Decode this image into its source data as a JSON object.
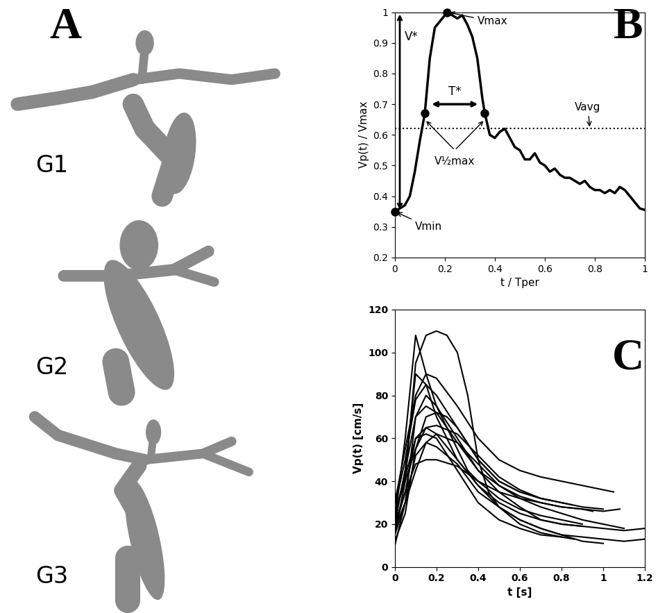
{
  "panel_labels": [
    "A",
    "B",
    "C"
  ],
  "geometry_labels": [
    "G1",
    "G2",
    "G3"
  ],
  "chart_data": [
    {
      "type": "line",
      "xlabel": "t / Tper",
      "ylabel": "Vp(t) / Vmax",
      "color": "#000000",
      "x": [
        0,
        0.04,
        0.06,
        0.08,
        0.1,
        0.12,
        0.14,
        0.16,
        0.18,
        0.21,
        0.23,
        0.25,
        0.27,
        0.29,
        0.31,
        0.33,
        0.35,
        0.36,
        0.38,
        0.4,
        0.42,
        0.44,
        0.46,
        0.48,
        0.5,
        0.52,
        0.54,
        0.56,
        0.58,
        0.6,
        0.62,
        0.64,
        0.66,
        0.68,
        0.7,
        0.72,
        0.74,
        0.76,
        0.78,
        0.8,
        0.82,
        0.84,
        0.86,
        0.88,
        0.9,
        0.92,
        0.94,
        0.96,
        0.98,
        1.0
      ],
      "values": [
        0.35,
        0.37,
        0.4,
        0.48,
        0.58,
        0.67,
        0.85,
        0.95,
        0.97,
        1.0,
        0.99,
        0.98,
        0.99,
        0.96,
        0.92,
        0.85,
        0.72,
        0.67,
        0.6,
        0.59,
        0.61,
        0.62,
        0.59,
        0.56,
        0.55,
        0.52,
        0.52,
        0.54,
        0.51,
        0.5,
        0.48,
        0.49,
        0.47,
        0.46,
        0.46,
        0.45,
        0.44,
        0.45,
        0.43,
        0.42,
        0.42,
        0.41,
        0.42,
        0.41,
        0.43,
        0.42,
        0.4,
        0.38,
        0.36,
        0.355
      ],
      "xlim": [
        0,
        1
      ],
      "xticks": [
        0,
        0.2,
        0.4,
        0.6,
        0.8,
        1
      ],
      "ylim": [
        0.2,
        1
      ],
      "yticks": [
        0.2,
        0.3,
        0.4,
        0.5,
        0.6,
        0.7,
        0.8,
        0.9,
        1
      ],
      "marked_points": [
        {
          "label": "Vmax",
          "x": 0.21,
          "y": 1.0
        },
        {
          "label": "Vmin",
          "x": 0,
          "y": 0.35
        }
      ],
      "half_max_points": {
        "label": "V½max",
        "x": [
          0.12,
          0.36
        ],
        "y": [
          0.67,
          0.67
        ]
      },
      "avg_line": {
        "label": "Vavg",
        "value": 0.62
      },
      "range_arrows": [
        "V*",
        "T*"
      ]
    },
    {
      "type": "line",
      "xlabel": "t [s]",
      "ylabel": "Vp(t) [cm/s]",
      "color": "#000000",
      "xlim": [
        0,
        1.2
      ],
      "xticks": [
        0,
        0.2,
        0.4,
        0.6,
        0.8,
        1,
        1.2
      ],
      "ylim": [
        0,
        120
      ],
      "yticks": [
        0,
        20,
        40,
        60,
        80,
        100,
        120
      ],
      "series": [
        {
          "x": [
            0,
            0.05,
            0.1,
            0.15,
            0.2,
            0.25,
            0.3,
            0.35,
            0.4,
            0.5,
            0.6,
            0.7,
            0.8,
            0.9,
            1.0,
            1.08
          ],
          "values": [
            22,
            60,
            108,
            90,
            75,
            65,
            55,
            45,
            40,
            35,
            32,
            30,
            28,
            27,
            26,
            27
          ]
        },
        {
          "x": [
            0,
            0.05,
            0.1,
            0.15,
            0.2,
            0.25,
            0.3,
            0.35,
            0.4,
            0.45,
            0.5,
            0.6,
            0.7,
            0.8,
            0.86
          ],
          "values": [
            15,
            40,
            95,
            108,
            110,
            108,
            100,
            80,
            50,
            35,
            28,
            20,
            16,
            14,
            13
          ]
        },
        {
          "x": [
            0,
            0.05,
            0.1,
            0.15,
            0.2,
            0.3,
            0.4,
            0.5,
            0.6,
            0.7,
            0.8,
            0.9,
            1.0,
            1.1,
            1.2
          ],
          "values": [
            10,
            30,
            70,
            80,
            75,
            60,
            45,
            35,
            28,
            22,
            20,
            19,
            18,
            17,
            18
          ]
        },
        {
          "x": [
            0,
            0.05,
            0.1,
            0.15,
            0.2,
            0.3,
            0.4,
            0.5,
            0.6,
            0.7,
            0.8,
            0.9,
            1.0,
            1.1,
            1.2
          ],
          "values": [
            12,
            25,
            55,
            65,
            62,
            50,
            38,
            28,
            22,
            18,
            15,
            14,
            13,
            12,
            13
          ]
        },
        {
          "x": [
            0,
            0.05,
            0.1,
            0.15,
            0.2,
            0.3,
            0.4,
            0.5,
            0.6,
            0.7,
            0.8,
            0.9,
            1.0,
            1.05
          ],
          "values": [
            30,
            55,
            80,
            90,
            88,
            75,
            60,
            50,
            45,
            42,
            40,
            38,
            36,
            35
          ]
        },
        {
          "x": [
            0,
            0.05,
            0.1,
            0.15,
            0.2,
            0.3,
            0.4,
            0.5,
            0.6,
            0.7,
            0.8,
            0.9,
            0.95
          ],
          "values": [
            20,
            45,
            70,
            75,
            72,
            58,
            45,
            38,
            33,
            30,
            28,
            27,
            26
          ]
        },
        {
          "x": [
            0,
            0.05,
            0.1,
            0.15,
            0.2,
            0.3,
            0.4,
            0.5,
            0.6,
            0.7,
            0.8
          ],
          "values": [
            18,
            35,
            60,
            62,
            60,
            45,
            30,
            22,
            18,
            15,
            14
          ]
        },
        {
          "x": [
            0,
            0.05,
            0.1,
            0.15,
            0.2,
            0.25,
            0.3,
            0.4,
            0.5,
            0.6,
            0.7,
            0.8,
            0.9,
            1.0
          ],
          "values": [
            25,
            40,
            55,
            70,
            72,
            70,
            65,
            50,
            40,
            35,
            32,
            30,
            28,
            27
          ]
        },
        {
          "x": [
            0,
            0.05,
            0.1,
            0.15,
            0.2,
            0.3,
            0.4,
            0.5,
            0.6,
            0.7,
            0.8,
            0.9
          ],
          "values": [
            20,
            35,
            48,
            50,
            50,
            47,
            40,
            32,
            27,
            24,
            22,
            20
          ]
        },
        {
          "x": [
            0,
            0.05,
            0.1,
            0.15,
            0.2,
            0.3,
            0.4,
            0.5,
            0.6,
            0.7,
            0.75
          ],
          "values": [
            28,
            50,
            78,
            85,
            80,
            65,
            50,
            40,
            35,
            32,
            31
          ]
        },
        {
          "x": [
            0,
            0.05,
            0.1,
            0.15,
            0.2,
            0.3,
            0.4,
            0.5,
            0.6,
            0.7,
            0.8,
            0.9,
            1.0
          ],
          "values": [
            15,
            30,
            52,
            58,
            56,
            48,
            35,
            28,
            22,
            18,
            15,
            12,
            11
          ]
        },
        {
          "x": [
            0,
            0.05,
            0.1,
            0.15,
            0.2,
            0.3,
            0.4,
            0.5,
            0.6,
            0.7,
            0.8,
            0.9
          ],
          "values": [
            22,
            45,
            90,
            85,
            70,
            50,
            38,
            30,
            25,
            22,
            20,
            19
          ]
        },
        {
          "x": [
            0,
            0.05,
            0.1,
            0.15,
            0.2,
            0.3,
            0.4,
            0.5,
            0.6,
            0.7,
            0.8,
            0.85
          ],
          "values": [
            25,
            42,
            60,
            65,
            66,
            62,
            52,
            42,
            36,
            32,
            30,
            29
          ]
        },
        {
          "x": [
            0,
            0.05,
            0.1,
            0.15,
            0.2,
            0.3,
            0.4,
            0.5,
            0.6,
            0.7,
            0.8,
            0.9,
            1.0,
            1.1
          ],
          "values": [
            18,
            30,
            45,
            58,
            62,
            58,
            48,
            38,
            32,
            28,
            25,
            22,
            20,
            18
          ]
        }
      ]
    }
  ]
}
